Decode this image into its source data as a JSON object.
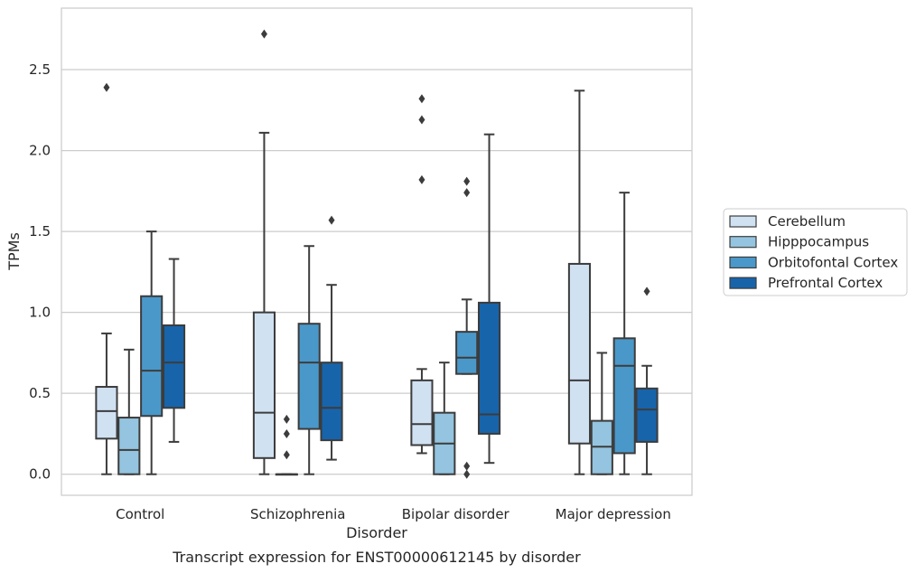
{
  "caption": "Transcript expression for ENST00000612145 by disorder",
  "chart_data": {
    "type": "box",
    "xlabel": "Disorder",
    "ylabel": "TPMs",
    "ylim": [
      -0.13,
      2.88
    ],
    "yticks": [
      0.0,
      0.5,
      1.0,
      1.5,
      2.0,
      2.5
    ],
    "ytick_labels": [
      "0.0",
      "0.5",
      "1.0",
      "1.5",
      "2.0",
      "2.5"
    ],
    "grid": "horizontal",
    "legend_position": "right",
    "categories": [
      "Control",
      "Schizophrenia",
      "Bipolar disorder",
      "Major depression"
    ],
    "series": [
      {
        "name": "Cerebellum",
        "color": "#d0e1f2",
        "boxes": [
          {
            "whislo": 0.0,
            "q1": 0.22,
            "med": 0.39,
            "q3": 0.54,
            "whishi": 0.87,
            "fliers": [
              2.39
            ]
          },
          {
            "whislo": 0.0,
            "q1": 0.1,
            "med": 0.38,
            "q3": 1.0,
            "whishi": 2.11,
            "fliers": [
              2.72
            ]
          },
          {
            "whislo": 0.13,
            "q1": 0.18,
            "med": 0.31,
            "q3": 0.58,
            "whishi": 0.65,
            "fliers": [
              1.82,
              2.19,
              2.32
            ]
          },
          {
            "whislo": 0.0,
            "q1": 0.19,
            "med": 0.58,
            "q3": 1.3,
            "whishi": 2.37,
            "fliers": []
          }
        ]
      },
      {
        "name": "Hipppocampus",
        "color": "#94c4df",
        "boxes": [
          {
            "whislo": 0.0,
            "q1": 0.0,
            "med": 0.15,
            "q3": 0.35,
            "whishi": 0.77,
            "fliers": []
          },
          {
            "whislo": 0.0,
            "q1": 0.0,
            "med": 0.0,
            "q3": 0.0,
            "whishi": 0.0,
            "fliers": [
              0.12,
              0.25,
              0.34
            ]
          },
          {
            "whislo": 0.0,
            "q1": 0.0,
            "med": 0.19,
            "q3": 0.38,
            "whishi": 0.69,
            "fliers": []
          },
          {
            "whislo": 0.0,
            "q1": 0.0,
            "med": 0.17,
            "q3": 0.33,
            "whishi": 0.75,
            "fliers": []
          }
        ]
      },
      {
        "name": "Orbitofontal Cortex",
        "color": "#4a98c9",
        "boxes": [
          {
            "whislo": 0.0,
            "q1": 0.36,
            "med": 0.64,
            "q3": 1.1,
            "whishi": 1.5,
            "fliers": []
          },
          {
            "whislo": 0.0,
            "q1": 0.28,
            "med": 0.69,
            "q3": 0.93,
            "whishi": 1.41,
            "fliers": []
          },
          {
            "whislo": 0.62,
            "q1": 0.62,
            "med": 0.72,
            "q3": 0.88,
            "whishi": 1.08,
            "fliers": [
              0.0,
              0.05,
              1.74,
              1.81
            ]
          },
          {
            "whislo": 0.0,
            "q1": 0.13,
            "med": 0.67,
            "q3": 0.84,
            "whishi": 1.74,
            "fliers": []
          }
        ]
      },
      {
        "name": "Prefrontal Cortex",
        "color": "#1764ab",
        "boxes": [
          {
            "whislo": 0.2,
            "q1": 0.41,
            "med": 0.69,
            "q3": 0.92,
            "whishi": 1.33,
            "fliers": []
          },
          {
            "whislo": 0.09,
            "q1": 0.21,
            "med": 0.41,
            "q3": 0.69,
            "whishi": 1.17,
            "fliers": [
              1.57
            ]
          },
          {
            "whislo": 0.07,
            "q1": 0.25,
            "med": 0.37,
            "q3": 1.06,
            "whishi": 2.1,
            "fliers": []
          },
          {
            "whislo": 0.0,
            "q1": 0.2,
            "med": 0.4,
            "q3": 0.53,
            "whishi": 0.67,
            "fliers": [
              1.13
            ]
          }
        ]
      }
    ]
  }
}
